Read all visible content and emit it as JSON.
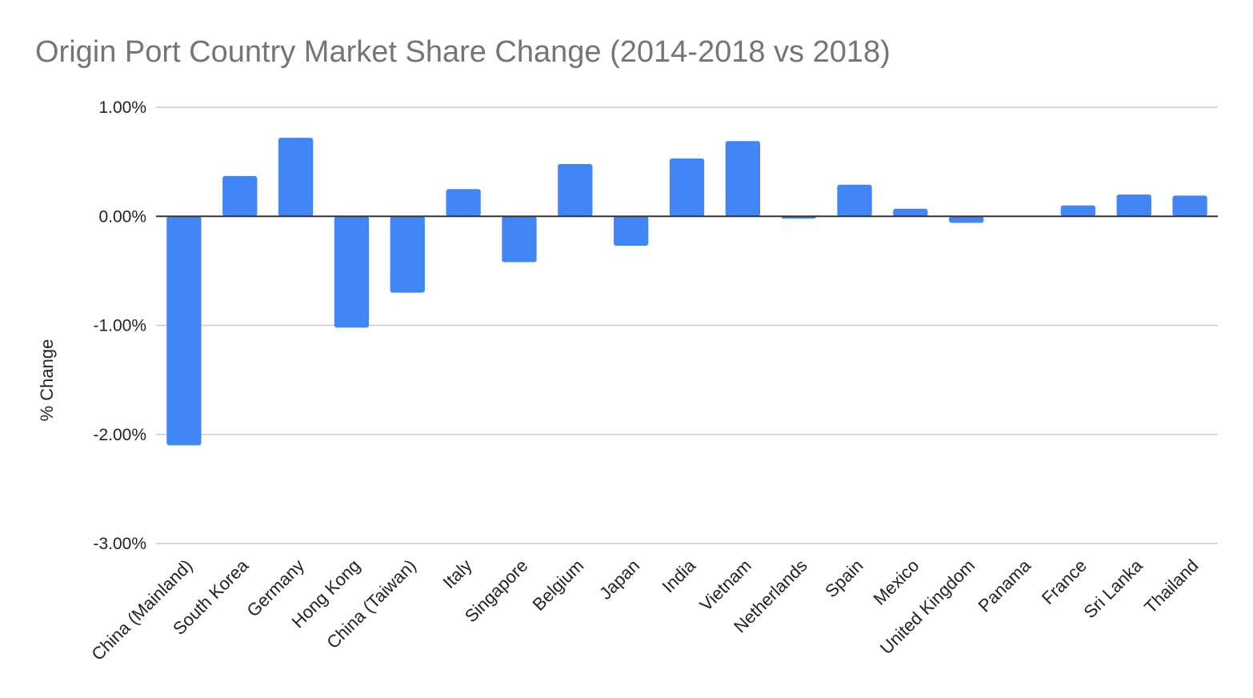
{
  "chart_data": {
    "type": "bar",
    "title": "Origin Port Country Market Share Change (2014-2018 vs 2018)",
    "xlabel": "",
    "ylabel": "% Change",
    "ylim": [
      -3.0,
      1.0
    ],
    "yticks": [
      {
        "value": 1.0,
        "label": "1.00%"
      },
      {
        "value": 0.0,
        "label": "0.00%"
      },
      {
        "value": -1.0,
        "label": "-1.00%"
      },
      {
        "value": -2.0,
        "label": "-2.00%"
      },
      {
        "value": -3.0,
        "label": "-3.00%"
      }
    ],
    "grid": true,
    "legend": "none",
    "bar_color": "#4285f4",
    "categories": [
      "China (Mainland)",
      "South Korea",
      "Germany",
      "Hong Kong",
      "China (Taiwan)",
      "Italy",
      "Singapore",
      "Belgium",
      "Japan",
      "India",
      "Vietnam",
      "Netherlands",
      "Spain",
      "Mexico",
      "United Kingdom",
      "Panama",
      "France",
      "Sri Lanka",
      "Thailand"
    ],
    "values": [
      -2.1,
      0.37,
      0.72,
      -1.02,
      -0.7,
      0.25,
      -0.42,
      0.48,
      -0.27,
      0.53,
      0.69,
      -0.02,
      0.29,
      0.07,
      -0.06,
      0.0,
      0.1,
      0.2,
      0.19
    ]
  }
}
